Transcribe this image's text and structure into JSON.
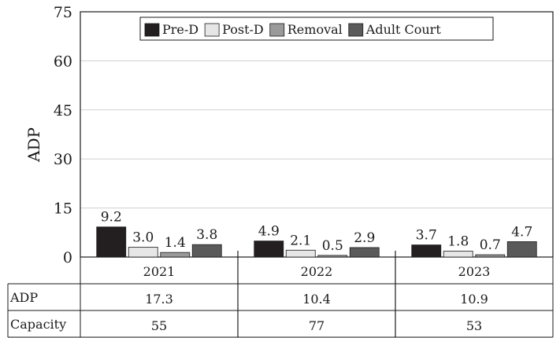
{
  "chart_data": {
    "type": "bar",
    "ylabel": "ADP",
    "ylim": [
      0,
      75
    ],
    "yticks": [
      0,
      15,
      30,
      45,
      60,
      75
    ],
    "grid": true,
    "legend_position": "top",
    "categories": [
      "2021",
      "2022",
      "2023"
    ],
    "series": [
      {
        "name": "Pre-D",
        "color": "#231f20",
        "values": [
          9.2,
          4.9,
          3.7
        ],
        "labels": [
          "9.2",
          "4.9",
          "3.7"
        ]
      },
      {
        "name": "Post-D",
        "color": "#e6e6e6",
        "values": [
          3.0,
          2.1,
          1.8
        ],
        "labels": [
          "3.0",
          "2.1",
          "1.8"
        ]
      },
      {
        "name": "Removal",
        "color": "#9a9a9a",
        "values": [
          1.4,
          0.5,
          0.7
        ],
        "labels": [
          "1.4",
          "0.5",
          "0.7"
        ]
      },
      {
        "name": "Adult Court",
        "color": "#5a5a5a",
        "values": [
          3.8,
          2.9,
          4.7
        ],
        "labels": [
          "3.8",
          "2.9",
          "4.7"
        ]
      }
    ],
    "table": {
      "rows": [
        {
          "label": "ADP",
          "values": [
            "17.3",
            "10.4",
            "10.9"
          ]
        },
        {
          "label": "Capacity",
          "values": [
            "55",
            "77",
            "53"
          ]
        }
      ]
    }
  }
}
